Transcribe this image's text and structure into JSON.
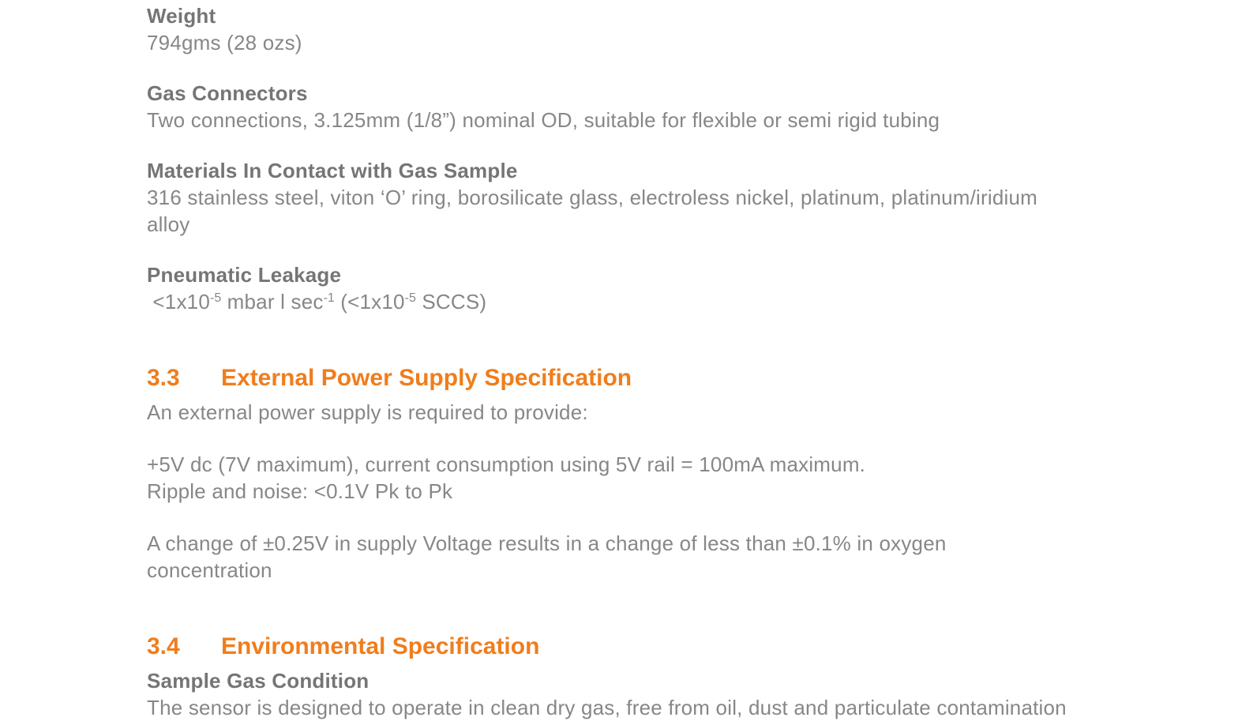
{
  "colors": {
    "page_background": "#ffffff",
    "body_text": "#878787",
    "label_text": "#757575",
    "section_heading": "#f07d1c"
  },
  "doc": {
    "items": [
      {
        "type": "spec",
        "label": "Weight",
        "lines": [
          "794gms (28 ozs)"
        ]
      },
      {
        "type": "spec",
        "label": "Gas Connectors",
        "lines": [
          "Two connections, 3.125mm (1/8”) nominal OD, suitable for flexible or semi rigid tubing"
        ]
      },
      {
        "type": "spec",
        "label": "Materials In Contact with Gas Sample",
        "lines": [
          "316 stainless steel, viton ‘O’ ring, borosilicate glass, electroless nickel, platinum, platinum/iridium",
          "alloy"
        ]
      },
      {
        "type": "spec",
        "label": "Pneumatic Leakage",
        "lines": [
          {
            "rich": [
              {
                "t": " <1x10"
              },
              {
                "sup": "-5"
              },
              {
                "t": " mbar l sec"
              },
              {
                "sup": "-1"
              },
              {
                "t": " (<1x10"
              },
              {
                "sup": "-5"
              },
              {
                "t": " SCCS)"
              }
            ]
          }
        ]
      },
      {
        "type": "section",
        "number": "3.3",
        "title": "External Power Supply Specification"
      },
      {
        "type": "para",
        "lines": [
          "An external power supply is required to provide:"
        ]
      },
      {
        "type": "para",
        "lines": [
          "+5V dc (7V maximum), current consumption using 5V rail = 100mA maximum.",
          "Ripple and noise: <0.1V Pk to Pk"
        ]
      },
      {
        "type": "para",
        "lines": [
          "A change of ±0.25V in supply Voltage results in a change of less than ±0.1% in oxygen",
          "concentration"
        ]
      },
      {
        "type": "section",
        "number": "3.4",
        "title": "Environmental Specification"
      },
      {
        "type": "spec",
        "label": "Sample Gas Condition",
        "lines": [
          "The sensor is designed to operate in clean dry gas, free from oil, dust and particulate contamination"
        ]
      }
    ]
  }
}
